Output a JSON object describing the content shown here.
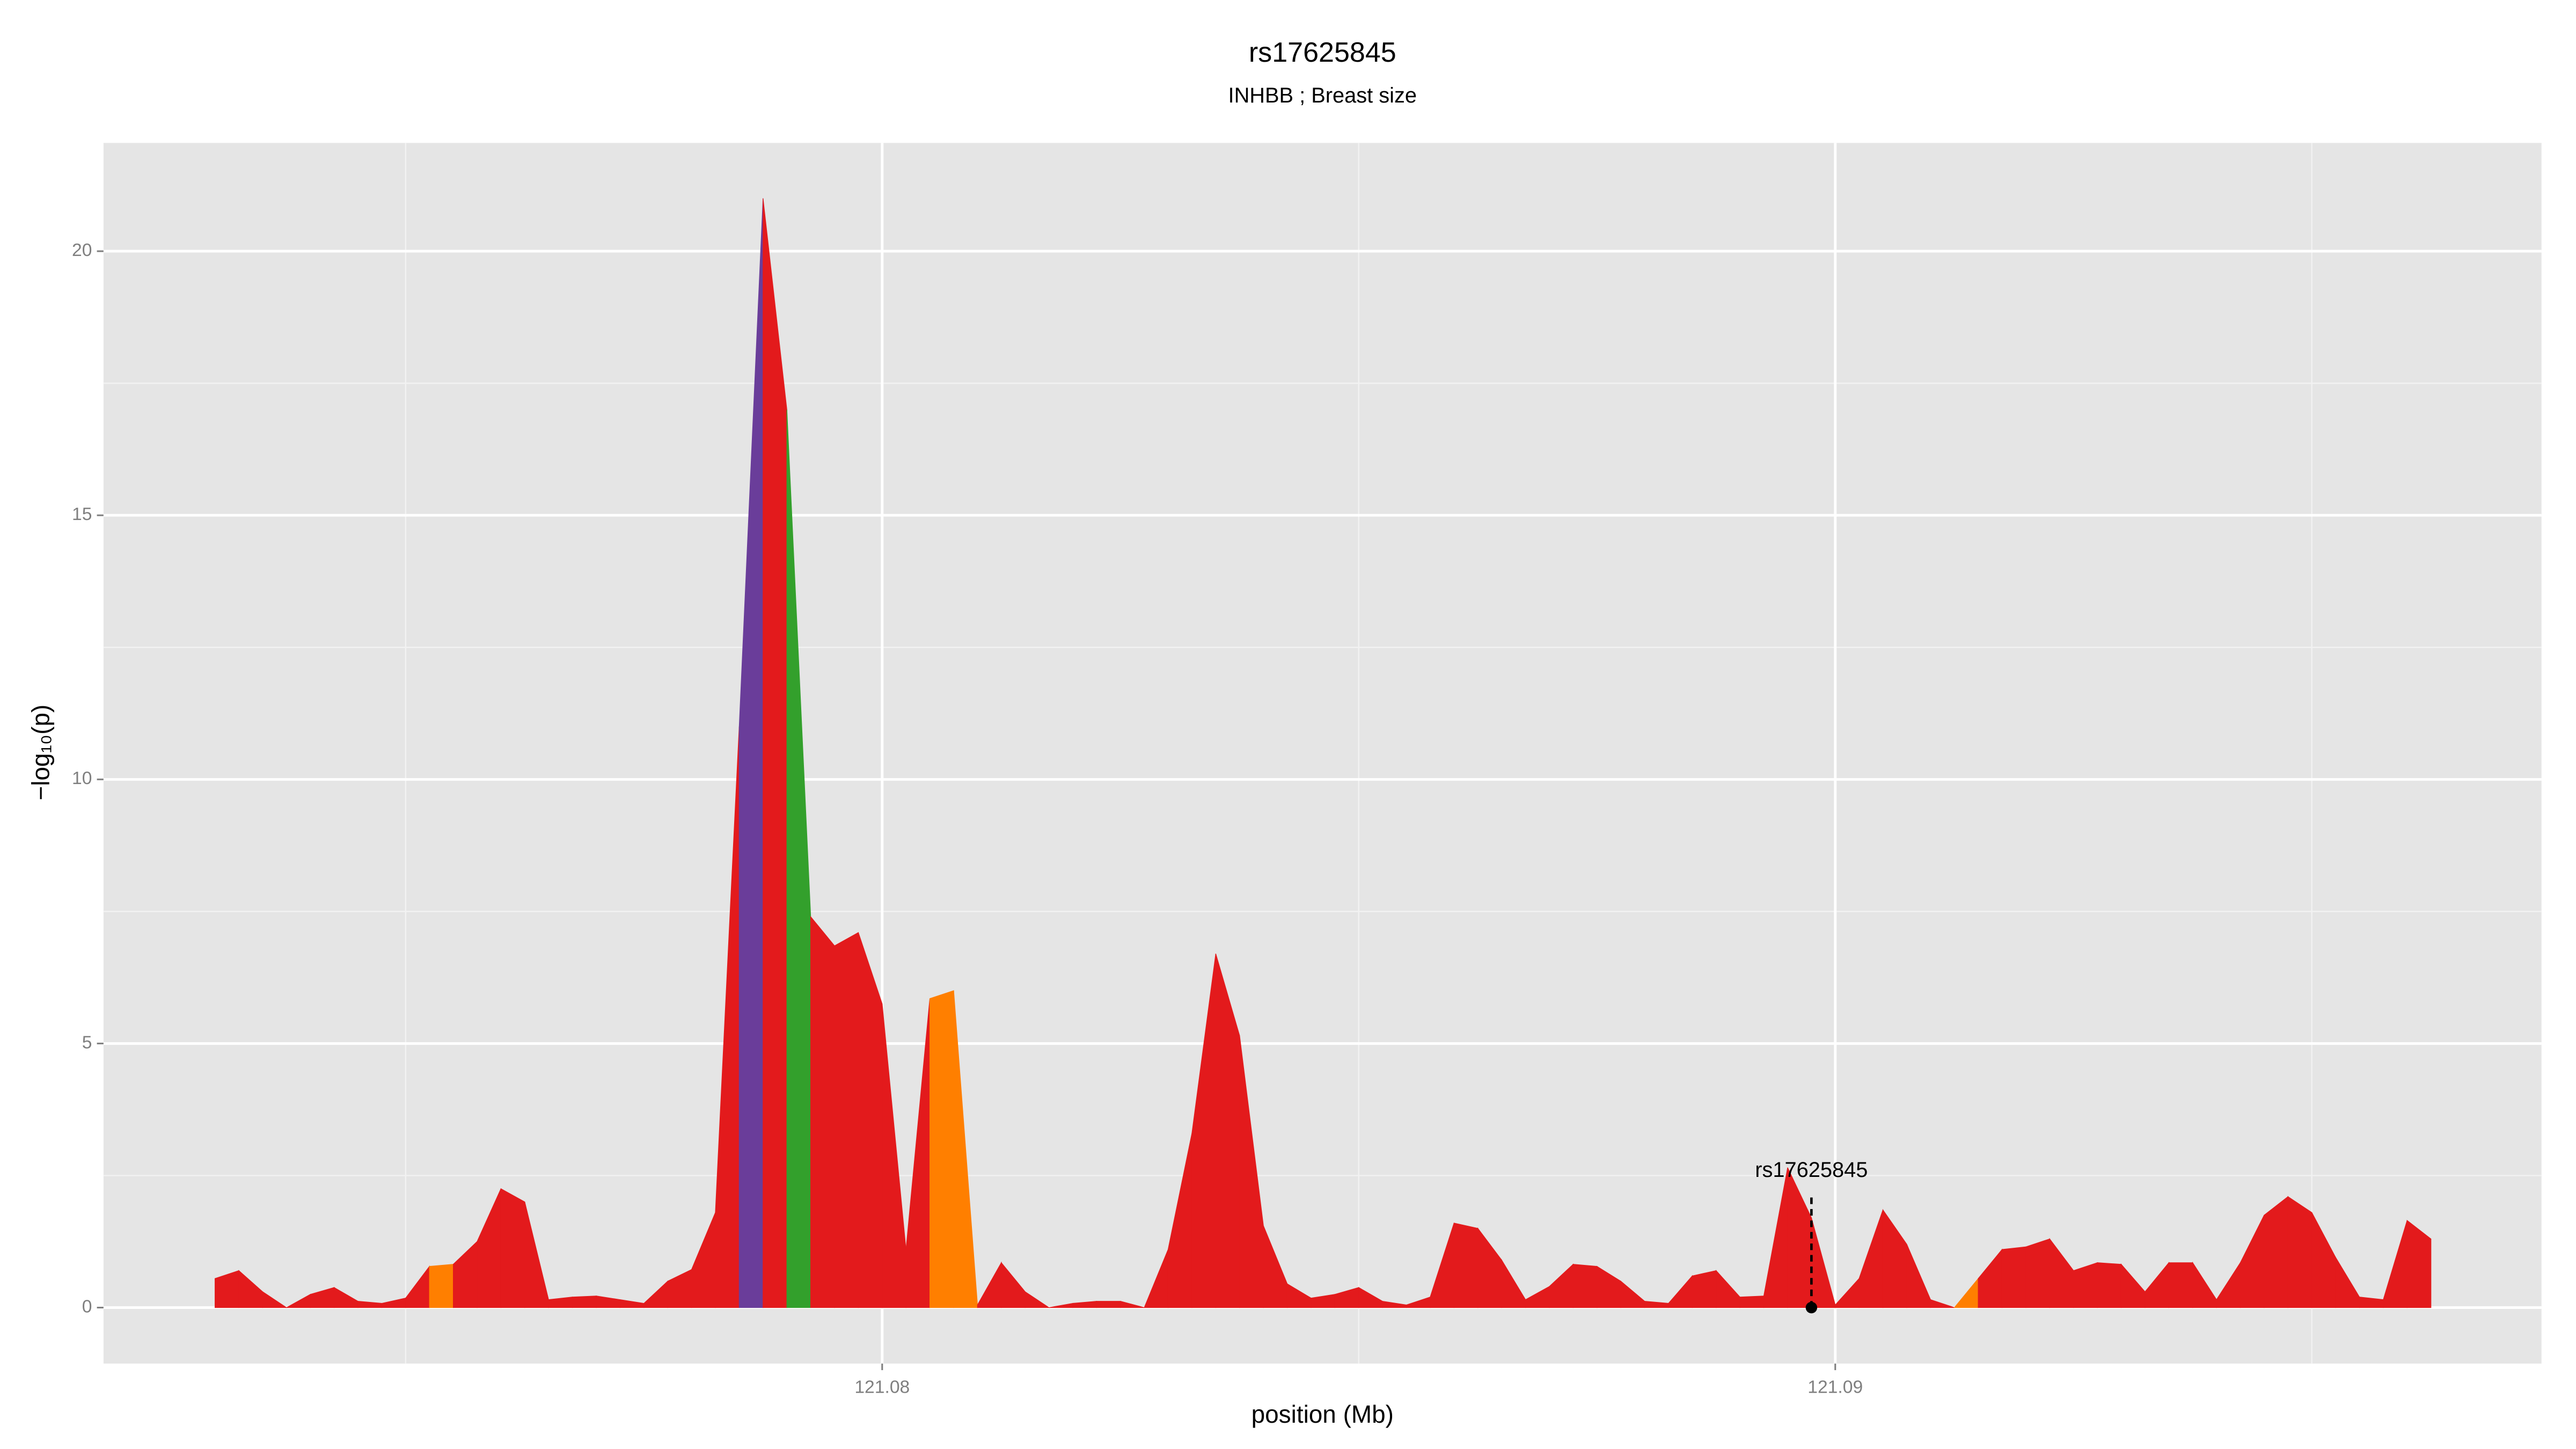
{
  "chart_data": {
    "type": "area",
    "title": "rs17625845",
    "subtitle": "INHBB ; Breast size",
    "xlabel": "position (Mb)",
    "ylabel": "−log₁₀(p)",
    "x": [
      121.073,
      121.07325,
      121.0735,
      121.07375,
      121.074,
      121.07425,
      121.0745,
      121.07475,
      121.075,
      121.07525,
      121.0755,
      121.07575,
      121.076,
      121.07625,
      121.0765,
      121.07675,
      121.077,
      121.07725,
      121.0775,
      121.07775,
      121.078,
      121.07825,
      121.0785,
      121.07875,
      121.079,
      121.07925,
      121.0795,
      121.07975,
      121.08,
      121.08025,
      121.0805,
      121.08075,
      121.081,
      121.08125,
      121.0815,
      121.08175,
      121.082,
      121.08225,
      121.0825,
      121.08275,
      121.083,
      121.08325,
      121.0835,
      121.08375,
      121.084,
      121.08425,
      121.0845,
      121.08475,
      121.085,
      121.08525,
      121.0855,
      121.08575,
      121.086,
      121.08625,
      121.0865,
      121.08675,
      121.087,
      121.08725,
      121.0875,
      121.08775,
      121.088,
      121.08825,
      121.0885,
      121.08875,
      121.089,
      121.08925,
      121.0895,
      121.08975,
      121.09,
      121.09025,
      121.0905,
      121.09075,
      121.091,
      121.09125,
      121.0915,
      121.09175,
      121.092,
      121.09225,
      121.0925,
      121.09275,
      121.093,
      121.09325,
      121.0935,
      121.09375,
      121.094,
      121.09425,
      121.0945,
      121.09475,
      121.095,
      121.09525,
      121.0955,
      121.09575,
      121.096,
      121.09625
    ],
    "values": [
      0.55,
      0.7,
      0.3,
      0.0,
      0.25,
      0.38,
      0.12,
      0.08,
      0.18,
      0.78,
      0.82,
      1.25,
      2.25,
      2.0,
      0.15,
      0.2,
      0.22,
      0.15,
      0.08,
      0.5,
      0.72,
      1.8,
      11,
      21,
      17,
      7.4,
      6.85,
      7.1,
      5.75,
      1.1,
      5.85,
      6.0,
      0.05,
      0.85,
      0.3,
      0.0,
      0.08,
      0.12,
      0.12,
      0.0,
      1.1,
      3.3,
      6.7,
      5.15,
      1.55,
      0.45,
      0.18,
      0.25,
      0.38,
      0.12,
      0.05,
      0.2,
      1.6,
      1.5,
      0.9,
      0.15,
      0.4,
      0.82,
      0.78,
      0.5,
      0.12,
      0.08,
      0.6,
      0.7,
      0.2,
      0.22,
      2.65,
      1.7,
      0.05,
      0.55,
      1.85,
      1.2,
      0.15,
      0.0,
      0.55,
      1.1,
      1.15,
      1.3,
      0.7,
      0.85,
      0.82,
      0.3,
      0.85,
      0.85,
      0.15,
      0.85,
      1.75,
      2.1,
      1.8,
      0.95,
      0.2,
      0.15,
      1.65,
      1.3
    ],
    "colors": [
      "#e31a1c",
      "#e31a1c",
      "#e31a1c",
      "#e31a1c",
      "#e31a1c",
      "#e31a1c",
      "#e31a1c",
      "#e31a1c",
      "#e31a1c",
      "#ff7f00",
      "#e31a1c",
      "#e31a1c",
      "#e31a1c",
      "#e31a1c",
      "#e31a1c",
      "#e31a1c",
      "#e31a1c",
      "#e31a1c",
      "#e31a1c",
      "#e31a1c",
      "#e31a1c",
      "#e31a1c",
      "#6a3d9a",
      "#e31a1c",
      "#33a02c",
      "#e31a1c",
      "#e31a1c",
      "#e31a1c",
      "#e31a1c",
      "#e31a1c",
      "#ff7f00",
      "#ff7f00",
      "#e31a1c",
      "#e31a1c",
      "#e31a1c",
      "#e31a1c",
      "#e31a1c",
      "#e31a1c",
      "#e31a1c",
      "#e31a1c",
      "#e31a1c",
      "#e31a1c",
      "#e31a1c",
      "#e31a1c",
      "#e31a1c",
      "#e31a1c",
      "#e31a1c",
      "#e31a1c",
      "#e31a1c",
      "#e31a1c",
      "#e31a1c",
      "#e31a1c",
      "#e31a1c",
      "#e31a1c",
      "#e31a1c",
      "#e31a1c",
      "#e31a1c",
      "#e31a1c",
      "#e31a1c",
      "#e31a1c",
      "#e31a1c",
      "#e31a1c",
      "#e31a1c",
      "#e31a1c",
      "#e31a1c",
      "#e31a1c",
      "#e31a1c",
      "#e31a1c",
      "#e31a1c",
      "#e31a1c",
      "#e31a1c",
      "#e31a1c",
      "#e31a1c",
      "#ff7f00",
      "#e31a1c",
      "#e31a1c",
      "#e31a1c",
      "#e31a1c",
      "#e31a1c",
      "#e31a1c",
      "#e31a1c",
      "#e31a1c",
      "#e31a1c",
      "#e31a1c",
      "#e31a1c",
      "#e31a1c",
      "#e31a1c",
      "#e31a1c",
      "#e31a1c",
      "#e31a1c",
      "#e31a1c",
      "#e31a1c",
      "#e31a1c",
      "#e31a1c"
    ],
    "annotation": {
      "text": "rs17625845",
      "x": 121.08975,
      "y": 0
    },
    "xlim": [
      121.07183,
      121.09741
    ],
    "ylim": [
      -1.06,
      22.05
    ],
    "xticks": [
      121.08,
      121.09
    ],
    "yticks": [
      0,
      5,
      10,
      15,
      20
    ],
    "xminor": [
      121.075,
      121.085,
      121.095
    ],
    "yminor": [
      2.5,
      7.5,
      12.5,
      17.5
    ],
    "grid": true,
    "panel_color": "#e5e5e5"
  }
}
